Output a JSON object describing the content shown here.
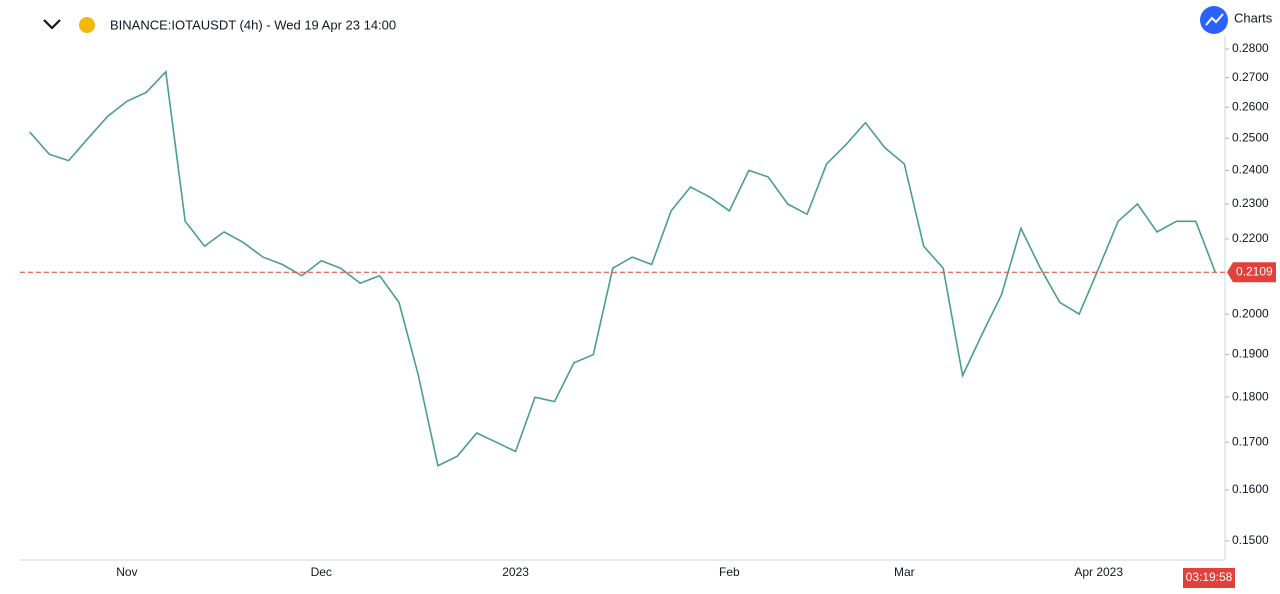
{
  "header": {
    "symbol": "BINANCE:IOTAUSDT (4h) - Wed 19 Apr 23 14:00",
    "logo": "Charts",
    "countdown": "03:19:58"
  },
  "chart_data": {
    "type": "line",
    "categories": [
      null,
      null,
      null,
      null,
      null,
      "Nov",
      null,
      null,
      null,
      null,
      null,
      null,
      null,
      null,
      null,
      "Dec",
      null,
      null,
      null,
      null,
      null,
      null,
      null,
      null,
      null,
      "2023",
      null,
      null,
      null,
      null,
      null,
      null,
      null,
      null,
      null,
      null,
      "Feb",
      null,
      null,
      null,
      null,
      null,
      null,
      null,
      null,
      "Mar",
      null,
      null,
      null,
      null,
      null,
      null,
      null,
      null,
      null,
      "Apr 2023",
      null,
      null,
      null,
      null,
      null,
      null
    ],
    "values": [
      0.252,
      0.245,
      0.243,
      0.25,
      0.257,
      0.262,
      0.265,
      0.272,
      0.225,
      0.218,
      0.222,
      0.219,
      0.215,
      0.213,
      0.21,
      0.214,
      0.212,
      0.208,
      0.21,
      0.203,
      0.185,
      0.165,
      0.167,
      0.172,
      0.17,
      0.168,
      0.18,
      0.179,
      0.188,
      0.19,
      0.212,
      0.215,
      0.213,
      0.228,
      0.235,
      0.232,
      0.228,
      0.24,
      0.238,
      0.23,
      0.227,
      0.242,
      0.248,
      0.255,
      0.247,
      0.242,
      0.218,
      0.212,
      0.185,
      0.195,
      0.205,
      0.223,
      0.212,
      0.203,
      0.2,
      0.212,
      0.225,
      0.23,
      0.222,
      0.225,
      0.225,
      0.2109
    ],
    "color": "#4a9e8f",
    "last_price": 0.2109,
    "last_price_color": "#e0413a",
    "log_scale": true,
    "ylim": [
      0.1464,
      0.285
    ],
    "yticks": [
      {
        "value": 0.28,
        "label": "0.2800"
      },
      {
        "value": 0.27,
        "label": "0.2700"
      },
      {
        "value": 0.26,
        "label": "0.2600"
      },
      {
        "value": 0.25,
        "label": "0.2500"
      },
      {
        "value": 0.24,
        "label": "0.2400"
      },
      {
        "value": 0.23,
        "label": "0.2300"
      },
      {
        "value": 0.22,
        "label": "0.2200"
      },
      {
        "value": 0.2,
        "label": "0.2000"
      },
      {
        "value": 0.19,
        "label": "0.1900"
      },
      {
        "value": 0.18,
        "label": "0.1800"
      },
      {
        "value": 0.17,
        "label": "0.1700"
      },
      {
        "value": 0.16,
        "label": "0.1600"
      },
      {
        "value": 0.15,
        "label": "0.1500"
      }
    ]
  }
}
